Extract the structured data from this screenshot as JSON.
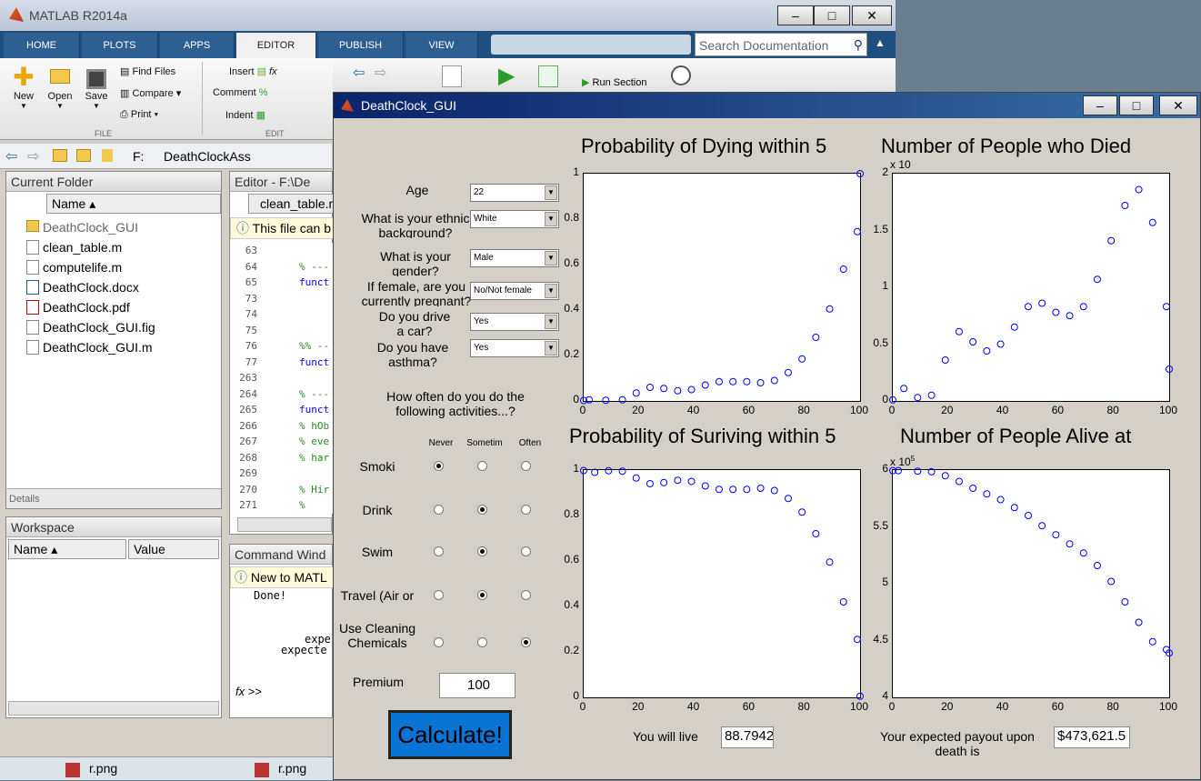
{
  "matlab": {
    "title": "MATLAB R2014a",
    "tabs": [
      "HOME",
      "PLOTS",
      "APPS",
      "EDITOR",
      "PUBLISH",
      "VIEW"
    ],
    "active_tab": "EDITOR",
    "search_placeholder": "Search Documentation",
    "file_group": "FILE",
    "edit_group": "EDIT",
    "btn_new": "New",
    "btn_open": "Open",
    "btn_save": "Save",
    "btn_find_files": "Find Files",
    "btn_compare": "Compare",
    "btn_print": "Print",
    "btn_insert": "Insert",
    "btn_comment": "Comment",
    "btn_indent": "Indent",
    "btn_run_section": "Run Section",
    "path_drive": "F:",
    "path_folder": "DeathClockAss"
  },
  "current_folder": {
    "title": "Current Folder",
    "name_col": "Name",
    "items": [
      "DeathClock_GUI",
      "clean_table.m",
      "computelife.m",
      "DeathClock.docx",
      "DeathClock.pdf",
      "DeathClock_GUI.fig",
      "DeathClock_GUI.m"
    ],
    "details": "Details"
  },
  "workspace": {
    "title": "Workspace",
    "name_col": "Name",
    "value_col": "Value"
  },
  "editor": {
    "title": "Editor - F:\\De",
    "tab": "clean_table.m",
    "info": "This file can b",
    "lines": [
      {
        "n": "63",
        "t": ""
      },
      {
        "n": "64",
        "t": "% ---"
      },
      {
        "n": "65",
        "t": "funct"
      },
      {
        "n": "73",
        "t": ""
      },
      {
        "n": "74",
        "t": ""
      },
      {
        "n": "75",
        "t": ""
      },
      {
        "n": "76",
        "t": "%% --"
      },
      {
        "n": "77",
        "t": "funct"
      },
      {
        "n": "263",
        "t": ""
      },
      {
        "n": "264",
        "t": "% ---"
      },
      {
        "n": "265",
        "t": "funct"
      },
      {
        "n": "266",
        "t": "% hOb"
      },
      {
        "n": "267",
        "t": "% eve"
      },
      {
        "n": "268",
        "t": "% har"
      },
      {
        "n": "269",
        "t": ""
      },
      {
        "n": "270",
        "t": "% Hir"
      },
      {
        "n": "271",
        "t": "%"
      }
    ]
  },
  "command": {
    "title": "Command Wind",
    "info": "New to MATL",
    "lines": [
      "Done!",
      "",
      "",
      "expe",
      "expecte"
    ],
    "prompt": ">>"
  },
  "taskbar": {
    "items": [
      "r.png",
      "r.png"
    ]
  },
  "gui": {
    "title": "DeathClock_GUI",
    "age_label": "Age",
    "age_value": "22",
    "ethnic_label": "What is your ethnic background?",
    "ethnic_value": "White",
    "gender_label": "What is your gender?",
    "gender_value": "Male",
    "pregnant_label": "If female, are you currently pregnant?",
    "pregnant_value": "No/Not female",
    "car_label": "Do you drive a car?",
    "car_value": "Yes",
    "asthma_label": "Do you have asthma?",
    "asthma_value": "Yes",
    "activities_label": "How often do you do the following activities...?",
    "freq_cols": [
      "Never",
      "Sometim",
      "Often"
    ],
    "activities": [
      {
        "name": "Smoki",
        "sel": 0
      },
      {
        "name": "Drink",
        "sel": 1
      },
      {
        "name": "Swim",
        "sel": 1
      },
      {
        "name": "Travel (Air or",
        "sel": 1
      },
      {
        "name": "Use Cleaning Chemicals",
        "sel": 2
      }
    ],
    "premium_label": "Premium",
    "premium_value": "100",
    "calc_label": "Calculate!",
    "live_label": "You will live",
    "live_value": "88.7942",
    "payout_label": "Your expected payout upon death is",
    "payout_value": "$473,621.5"
  },
  "chart_data": [
    {
      "type": "scatter",
      "title": "Probability of Dying within 5",
      "xlim": [
        0,
        100
      ],
      "ylim": [
        0,
        1
      ],
      "xticks": [
        "0",
        "20",
        "40",
        "60",
        "80",
        "100"
      ],
      "yticks": [
        "0",
        "0.2",
        "0.4",
        "0.6",
        "0.8",
        "1"
      ],
      "color": "#0000ff",
      "x": [
        0,
        2,
        8,
        14,
        19,
        24,
        29,
        34,
        39,
        44,
        49,
        54,
        59,
        64,
        69,
        74,
        79,
        84,
        89,
        94,
        99,
        100
      ],
      "y": [
        0.002,
        0.005,
        0.003,
        0.005,
        0.035,
        0.06,
        0.055,
        0.045,
        0.05,
        0.07,
        0.085,
        0.085,
        0.085,
        0.08,
        0.09,
        0.125,
        0.185,
        0.28,
        0.405,
        0.58,
        0.745,
        1.0
      ]
    },
    {
      "type": "scatter",
      "title": "Number of People who Died",
      "xlim": [
        0,
        100
      ],
      "ylim": [
        0,
        2
      ],
      "exponent": "x 10",
      "xticks": [
        "0",
        "20",
        "40",
        "60",
        "80",
        "100"
      ],
      "yticks": [
        "0",
        "0.5",
        "1",
        "1.5",
        "2"
      ],
      "color": "#0000ff",
      "x": [
        0,
        4,
        9,
        14,
        19,
        24,
        29,
        34,
        39,
        44,
        49,
        54,
        59,
        64,
        69,
        74,
        79,
        84,
        89,
        94,
        99,
        100
      ],
      "y": [
        0.01,
        0.11,
        0.03,
        0.05,
        0.36,
        0.61,
        0.52,
        0.44,
        0.5,
        0.65,
        0.83,
        0.86,
        0.78,
        0.75,
        0.83,
        1.07,
        1.41,
        1.72,
        1.86,
        1.57,
        0.83,
        0.28
      ]
    },
    {
      "type": "scatter",
      "title": "Probability of Suriving within 5",
      "xlim": [
        0,
        100
      ],
      "ylim": [
        0,
        1
      ],
      "xticks": [
        "0",
        "20",
        "40",
        "60",
        "80",
        "100"
      ],
      "yticks": [
        "0",
        "0.2",
        "0.4",
        "0.6",
        "0.8",
        "1"
      ],
      "color": "#0000ff",
      "x": [
        0,
        4,
        9,
        14,
        19,
        24,
        29,
        34,
        39,
        44,
        49,
        54,
        59,
        64,
        69,
        74,
        79,
        84,
        89,
        94,
        99,
        100
      ],
      "y": [
        0.998,
        0.99,
        0.997,
        0.995,
        0.965,
        0.94,
        0.945,
        0.955,
        0.95,
        0.93,
        0.915,
        0.915,
        0.915,
        0.92,
        0.91,
        0.875,
        0.815,
        0.72,
        0.595,
        0.42,
        0.255,
        0.005
      ]
    },
    {
      "type": "scatter",
      "title": "Number of People Alive at",
      "xlim": [
        0,
        100
      ],
      "ylim": [
        4,
        6
      ],
      "exponent": "x 10",
      "exponent_power": "5",
      "xticks": [
        "0",
        "20",
        "40",
        "60",
        "80",
        "100"
      ],
      "yticks": [
        "4",
        "4.5",
        "5",
        "5.5",
        "6"
      ],
      "color": "#0000ff",
      "x": [
        0,
        2,
        9,
        14,
        19,
        24,
        29,
        34,
        39,
        44,
        49,
        54,
        59,
        64,
        69,
        74,
        79,
        84,
        89,
        94,
        99,
        100
      ],
      "y": [
        5.995,
        5.995,
        5.99,
        5.985,
        5.95,
        5.9,
        5.84,
        5.79,
        5.74,
        5.67,
        5.6,
        5.51,
        5.43,
        5.35,
        5.27,
        5.16,
        5.02,
        4.84,
        4.66,
        4.49,
        4.42,
        4.39
      ]
    }
  ]
}
